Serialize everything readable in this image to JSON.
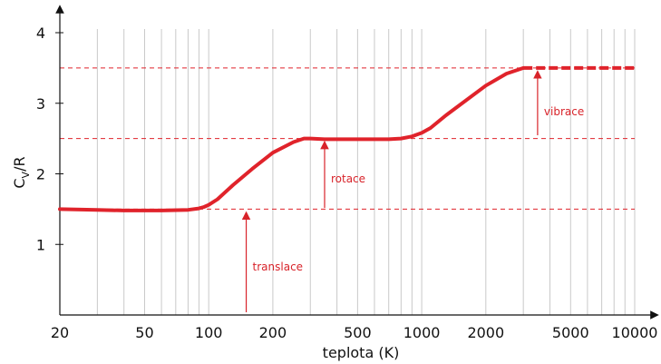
{
  "chart_data": {
    "type": "line",
    "title": "",
    "xlabel": "teplota (K)",
    "ylabel": {
      "main": "C",
      "sub": "V",
      "tail": "/R"
    },
    "xscale": "log",
    "xlim": [
      20,
      10000
    ],
    "ylim": [
      0,
      4
    ],
    "grid": "vertical log-decade gridlines",
    "x_tick_labels": [
      "20",
      "50",
      "100",
      "200",
      "500",
      "1000",
      "2000",
      "5000",
      "10000"
    ],
    "y_tick_labels": [
      "1",
      "2",
      "3",
      "4"
    ],
    "series": [
      {
        "color": "#e0232b",
        "x": [
          20,
          30,
          40,
          60,
          80,
          90,
          95,
          100,
          110,
          130,
          160,
          200,
          250,
          280,
          300,
          350,
          500,
          700,
          800,
          900,
          1000,
          1100,
          1300,
          1500,
          2000,
          2500,
          3000
        ],
        "values": [
          1.5,
          1.49,
          1.48,
          1.48,
          1.49,
          1.51,
          1.53,
          1.56,
          1.64,
          1.84,
          2.07,
          2.3,
          2.45,
          2.5,
          2.5,
          2.49,
          2.49,
          2.49,
          2.5,
          2.53,
          2.58,
          2.65,
          2.83,
          2.97,
          3.25,
          3.42,
          3.5
        ]
      },
      {
        "style": "dashed",
        "color": "#e0232b",
        "x": [
          3000,
          10000
        ],
        "values": [
          3.5,
          3.5
        ]
      }
    ],
    "reference_lines": [
      {
        "y": 1.5,
        "style": "dashed",
        "color": "#e0232b"
      },
      {
        "y": 2.5,
        "style": "dashed",
        "color": "#e0232b"
      },
      {
        "y": 3.5,
        "style": "dashed",
        "color": "#e0232b"
      }
    ],
    "annotations": [
      {
        "text": "translace",
        "arrow_x": 150,
        "from_y": 0,
        "to_y": 1.5
      },
      {
        "text": "rotace",
        "arrow_x": 350,
        "from_y": 1.5,
        "to_y": 2.5
      },
      {
        "text": "vibrace",
        "arrow_x": 3500,
        "from_y": 2.5,
        "to_y": 3.5
      }
    ]
  }
}
